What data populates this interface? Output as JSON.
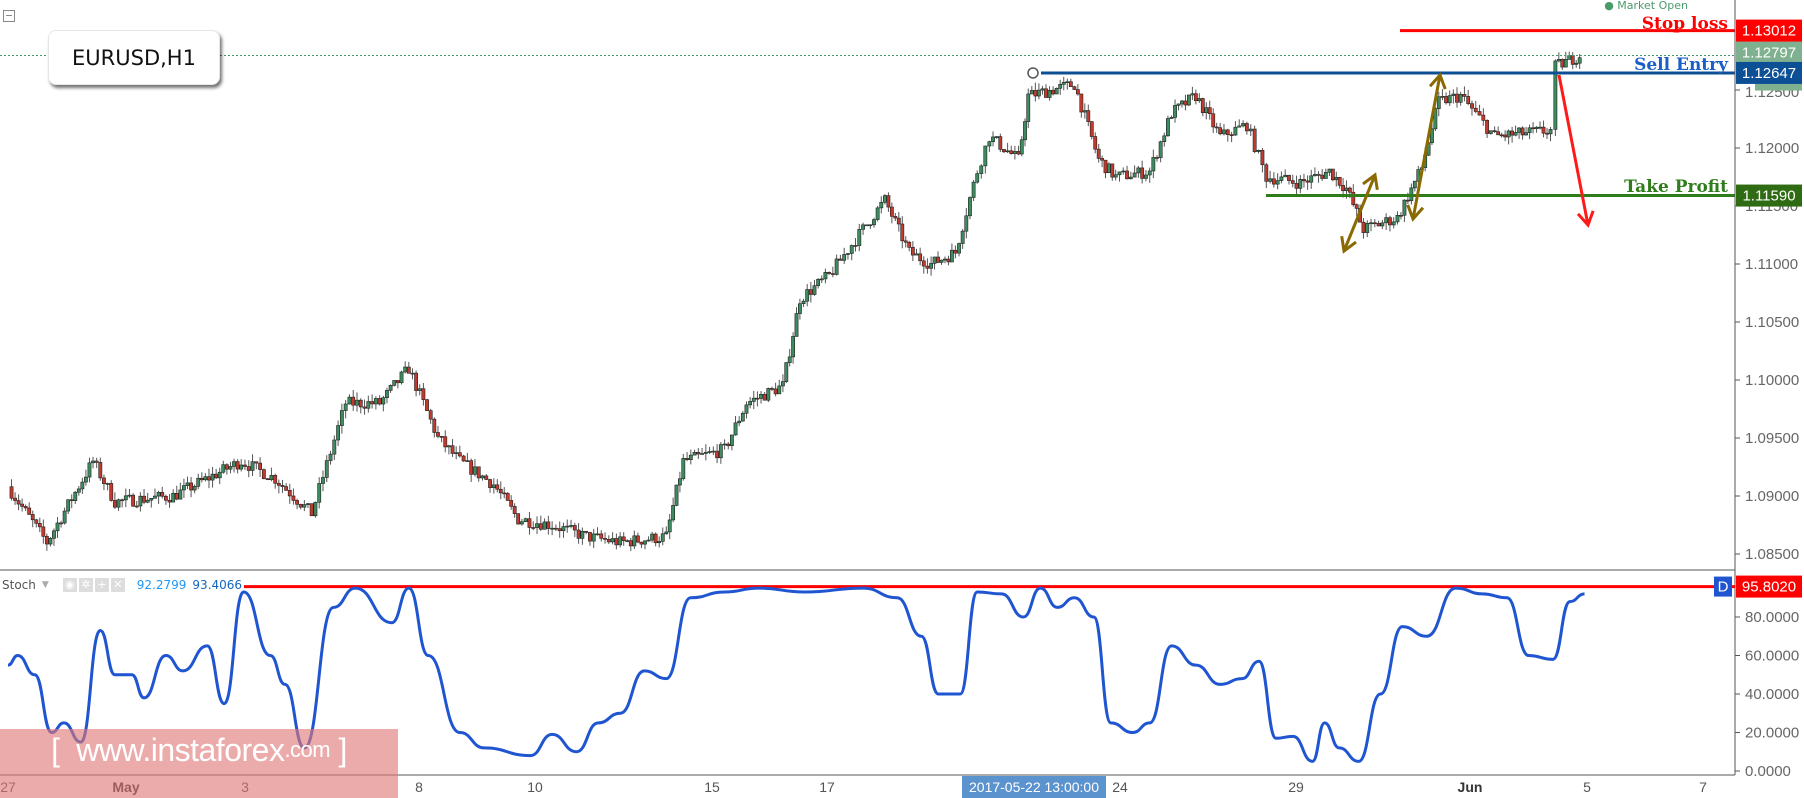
{
  "symbol": "EURUSD,H1",
  "market_status": "Market Open",
  "chart_data": [
    {
      "type": "candlestick",
      "title": "EURUSD,H1",
      "x_tick_labels": [
        "27",
        "May",
        "3",
        "8",
        "10",
        "15",
        "17",
        "24",
        "29",
        "Jun",
        "5",
        "7"
      ],
      "y_tick_labels": [
        "1.12500",
        "1.12000",
        "1.11500",
        "1.11000",
        "1.10500",
        "1.10000",
        "1.09500",
        "1.09000",
        "1.08500"
      ],
      "ylim": [
        1.0835,
        1.1325
      ],
      "grid": false,
      "current_price": 1.12797,
      "approx_price_path": [
        [
          "04-27 00",
          1.0908
        ],
        [
          "04-27 16",
          1.086
        ],
        [
          "04-28 11",
          1.093
        ],
        [
          "04-28 20",
          1.0895
        ],
        [
          "05-01 20",
          1.09
        ],
        [
          "05-03 00",
          1.093
        ],
        [
          "05-03 14",
          1.0915
        ],
        [
          "05-04 05",
          1.0885
        ],
        [
          "05-04 19",
          1.098
        ],
        [
          "05-05 09",
          1.098
        ],
        [
          "05-05 21",
          1.101
        ],
        [
          "05-08 09",
          1.095
        ],
        [
          "05-08 18",
          1.093
        ],
        [
          "05-09 08",
          1.091
        ],
        [
          "05-09 18",
          1.088
        ],
        [
          "05-10 08",
          1.0875
        ],
        [
          "05-10 22",
          1.0865
        ],
        [
          "05-11 12",
          1.086
        ],
        [
          "05-12 07",
          1.0865
        ],
        [
          "05-12 14",
          1.093
        ],
        [
          "05-15 07",
          1.094
        ],
        [
          "05-15 16",
          1.098
        ],
        [
          "05-16 07",
          1.0995
        ],
        [
          "05-16 14",
          1.107
        ],
        [
          "05-17 02",
          1.109
        ],
        [
          "05-17 16",
          1.113
        ],
        [
          "05-18 01",
          1.1155
        ],
        [
          "05-18 11",
          1.111
        ],
        [
          "05-18 20",
          1.11
        ],
        [
          "05-19 06",
          1.111
        ],
        [
          "05-19 15",
          1.118
        ],
        [
          "05-19 20",
          1.121
        ],
        [
          "05-22 08",
          1.119
        ],
        [
          "05-22 12",
          1.1245
        ],
        [
          "05-23 07",
          1.1255
        ],
        [
          "05-23 17",
          1.119
        ],
        [
          "05-24 00",
          1.1175
        ],
        [
          "05-24 14",
          1.118
        ],
        [
          "05-24 23",
          1.123
        ],
        [
          "05-25 09",
          1.1245
        ],
        [
          "05-25 19",
          1.121
        ],
        [
          "05-26 06",
          1.122
        ],
        [
          "05-26 14",
          1.1175
        ],
        [
          "05-29 04",
          1.117
        ],
        [
          "05-29 16",
          1.118
        ],
        [
          "05-29 23",
          1.1165
        ],
        [
          "05-30 06",
          1.113
        ],
        [
          "05-30 20",
          1.114
        ],
        [
          "05-31 06",
          1.1183
        ],
        [
          "05-31 13",
          1.124
        ],
        [
          "05-31 22",
          1.1245
        ],
        [
          "06-01 12",
          1.121
        ],
        [
          "06-02 11",
          1.1215
        ],
        [
          "06-02 13",
          1.127
        ],
        [
          "06-02 23",
          1.128
        ]
      ],
      "levels": [
        {
          "label": "Stop loss",
          "price": 1.13012,
          "tag": "1.13012",
          "color": "#ff0000"
        },
        {
          "label": "Sell Entry",
          "price": 1.12647,
          "tag": "1.12647",
          "color": "#0d4f94"
        },
        {
          "label": "Take Profit",
          "price": 1.1159,
          "tag": "1.11590",
          "color": "#2e7d1a"
        }
      ],
      "current_tag": "1.12797"
    },
    {
      "type": "line",
      "title": "Stoch",
      "values_shown": [
        "92.2799",
        "93.4066"
      ],
      "y_tick_labels": [
        "80.0000",
        "60.0000",
        "40.0000",
        "20.0000",
        "0.0000"
      ],
      "ylim": [
        0,
        100
      ],
      "level": {
        "value": 95.802,
        "tag": "95.8020",
        "badge": "D",
        "color": "#ff0000"
      },
      "series_color": "#1f55d0",
      "approx_values": [
        [
          "04-27 00",
          55
        ],
        [
          "04-27 04",
          60
        ],
        [
          "04-27 11",
          50
        ],
        [
          "04-27 18",
          20
        ],
        [
          "04-27 23",
          25
        ],
        [
          "04-28 06",
          15
        ],
        [
          "04-28 14",
          73
        ],
        [
          "04-28 20",
          50
        ],
        [
          "05-01 03",
          50
        ],
        [
          "05-01 08",
          38
        ],
        [
          "05-01 17",
          60
        ],
        [
          "05-02 00",
          52
        ],
        [
          "05-02 10",
          65
        ],
        [
          "05-02 17",
          35
        ],
        [
          "05-03 01",
          93
        ],
        [
          "05-03 12",
          60
        ],
        [
          "05-03 18",
          45
        ],
        [
          "05-04 02",
          12
        ],
        [
          "05-04 14",
          85
        ],
        [
          "05-04 23",
          95
        ],
        [
          "05-05 14",
          77
        ],
        [
          "05-05 21",
          95
        ],
        [
          "05-08 05",
          60
        ],
        [
          "05-08 18",
          20
        ],
        [
          "05-09 04",
          12
        ],
        [
          "05-09 23",
          8
        ],
        [
          "05-10 08",
          19
        ],
        [
          "05-10 18",
          10
        ],
        [
          "05-11 03",
          25
        ],
        [
          "05-11 12",
          30
        ],
        [
          "05-11 22",
          52
        ],
        [
          "05-12 07",
          48
        ],
        [
          "05-12 17",
          90
        ],
        [
          "05-15 07",
          93
        ],
        [
          "05-15 21",
          95
        ],
        [
          "05-16 16",
          93
        ],
        [
          "05-17 16",
          95
        ],
        [
          "05-18 06",
          90
        ],
        [
          "05-18 16",
          70
        ],
        [
          "05-18 23",
          40
        ],
        [
          "05-19 08",
          40
        ],
        [
          "05-19 15",
          93
        ],
        [
          "05-22 01",
          92
        ],
        [
          "05-22 10",
          80
        ],
        [
          "05-22 17",
          95
        ],
        [
          "05-23 00",
          85
        ],
        [
          "05-23 07",
          90
        ],
        [
          "05-23 15",
          80
        ],
        [
          "05-23 22",
          25
        ],
        [
          "05-24 07",
          20
        ],
        [
          "05-24 14",
          25
        ],
        [
          "05-24 23",
          65
        ],
        [
          "05-25 09",
          55
        ],
        [
          "05-25 19",
          45
        ],
        [
          "05-26 04",
          48
        ],
        [
          "05-26 11",
          57
        ],
        [
          "05-26 18",
          17
        ],
        [
          "05-29 01",
          18
        ],
        [
          "05-29 09",
          5
        ],
        [
          "05-29 14",
          25
        ],
        [
          "05-29 20",
          12
        ],
        [
          "05-30 04",
          5
        ],
        [
          "05-30 13",
          40
        ],
        [
          "05-30 22",
          75
        ],
        [
          "05-31 08",
          70
        ],
        [
          "05-31 20",
          95
        ],
        [
          "06-01 07",
          92
        ],
        [
          "06-01 17",
          90
        ],
        [
          "06-02 02",
          60
        ],
        [
          "06-02 12",
          58
        ],
        [
          "06-02 19",
          88
        ],
        [
          "06-05 01",
          92
        ]
      ]
    }
  ],
  "crosshair_time": "2017-05-22 13:00:00",
  "watermark": {
    "open": "[",
    "site": "www.instaforex",
    "tld": ".com",
    "close": "]"
  },
  "colors": {
    "up": "#3d8c5f",
    "down": "#c23a2e",
    "arrow_brown": "#8a6a00",
    "arrow_red": "#ff1a1a",
    "axis_blue": "#5b93cf"
  }
}
